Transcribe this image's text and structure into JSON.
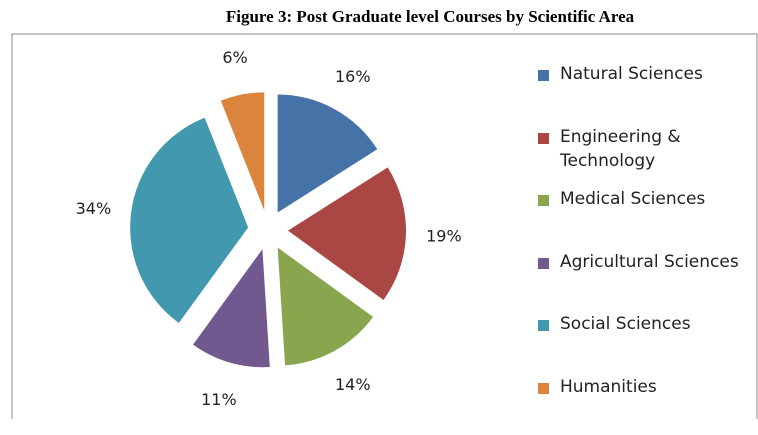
{
  "chart_data": {
    "type": "pie",
    "title": "Figure 3: Post Graduate level Courses by Scientific Area",
    "categories": [
      "Natural Sciences",
      "Engineering & Technology",
      "Medical Sciences",
      "Agricultural Sciences",
      "Social Sciences",
      "Humanities"
    ],
    "values": [
      16,
      19,
      14,
      11,
      34,
      6
    ],
    "value_labels": [
      "16%",
      "19%",
      "14%",
      "11%",
      "34%",
      "6%"
    ],
    "colors": [
      "#4572a7",
      "#aa4643",
      "#89a54e",
      "#71588f",
      "#4198af",
      "#db843d"
    ],
    "legend": "right"
  }
}
